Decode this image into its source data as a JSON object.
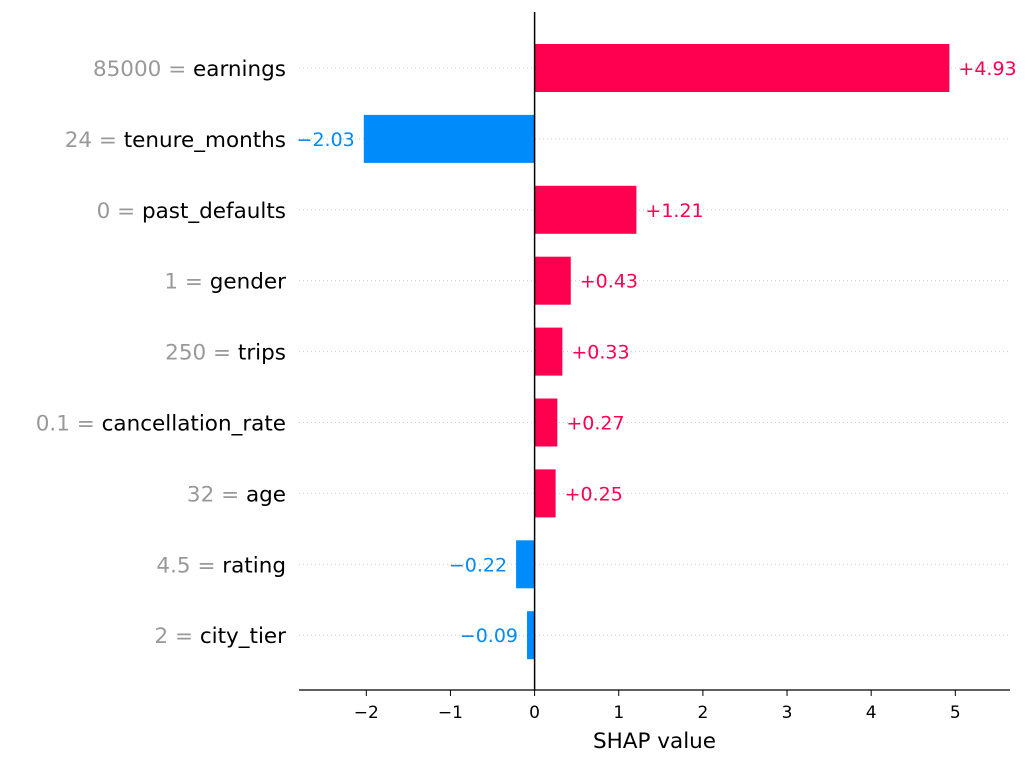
{
  "chart_data": {
    "type": "bar",
    "orientation": "horizontal",
    "xlabel": "SHAP value",
    "xlim": [
      -2.8,
      5.65
    ],
    "xticks": [
      -2,
      -1,
      0,
      1,
      2,
      3,
      4,
      5
    ],
    "xtick_labels": [
      "−2",
      "−1",
      "0",
      "1",
      "2",
      "3",
      "4",
      "5"
    ],
    "features": [
      {
        "value": "85000",
        "name": "earnings",
        "shap": 4.93,
        "label": "+4.93"
      },
      {
        "value": "24",
        "name": "tenure_months",
        "shap": -2.03,
        "label": "−2.03"
      },
      {
        "value": "0",
        "name": "past_defaults",
        "shap": 1.21,
        "label": "+1.21"
      },
      {
        "value": "1",
        "name": "gender",
        "shap": 0.43,
        "label": "+0.43"
      },
      {
        "value": "250",
        "name": "trips",
        "shap": 0.33,
        "label": "+0.33"
      },
      {
        "value": "0.1",
        "name": "cancellation_rate",
        "shap": 0.27,
        "label": "+0.27"
      },
      {
        "value": "32",
        "name": "age",
        "shap": 0.25,
        "label": "+0.25"
      },
      {
        "value": "4.5",
        "name": "rating",
        "shap": -0.22,
        "label": "−0.22"
      },
      {
        "value": "2",
        "name": "city_tier",
        "shap": -0.09,
        "label": "−0.09"
      }
    ],
    "colors": {
      "positive": "#ff0051",
      "negative": "#008bfb",
      "feature_value": "#999999",
      "feature_name": "#000000",
      "gridline": "#cccccc",
      "zero_line": "#000000"
    }
  }
}
